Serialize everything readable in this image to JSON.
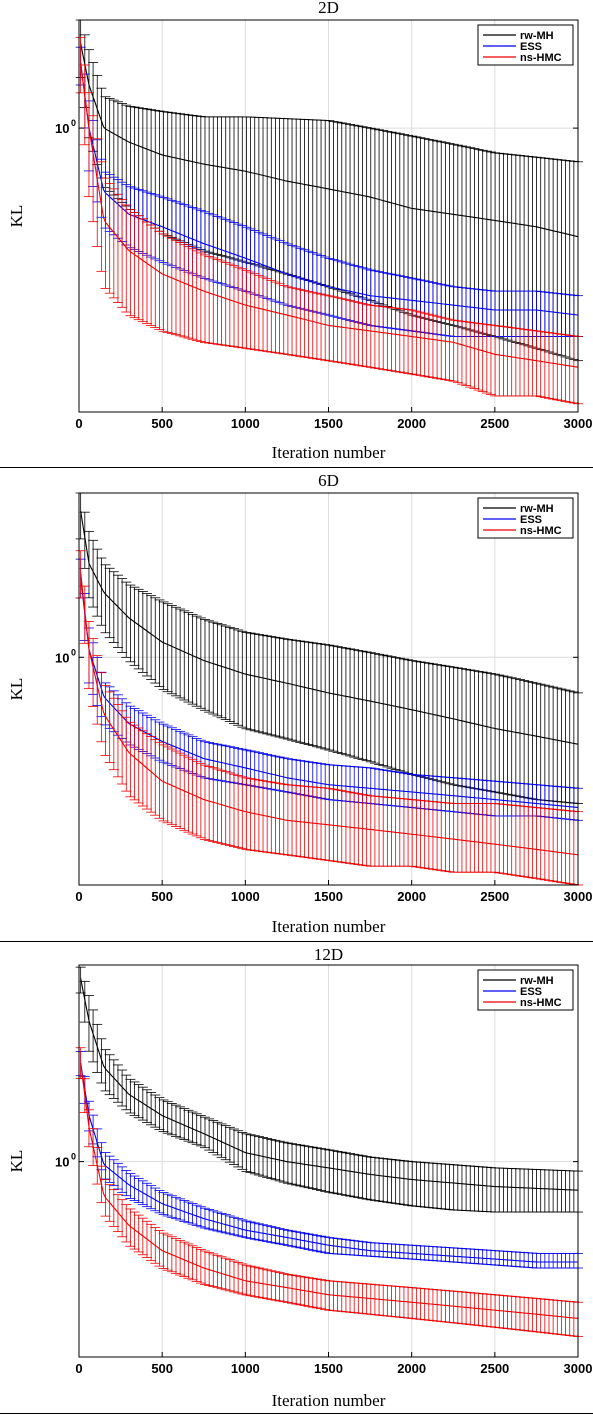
{
  "figure": {
    "panels": [
      "2D",
      "6D",
      "12D"
    ]
  },
  "chart_data": [
    {
      "type": "line",
      "title": "2D",
      "xlabel": "Iteration number",
      "ylabel": "KL",
      "yscale": "log",
      "xlim": [
        0,
        3000
      ],
      "ylim": [
        0.23,
        1.75
      ],
      "xticks": [
        0,
        500,
        1000,
        1500,
        2000,
        2500,
        3000
      ],
      "xtick_labels": [
        "0",
        "500",
        "1000",
        "1500",
        "2000",
        "2500",
        "3000"
      ],
      "yticks": [
        1.0
      ],
      "ytick_label": "10",
      "ytick_exp": "0",
      "grid": true,
      "legend": "top-right",
      "error_bars": true,
      "x": [
        10,
        60,
        150,
        300,
        500,
        750,
        1000,
        1250,
        1500,
        1750,
        2000,
        2250,
        2500,
        2750,
        3000
      ],
      "series": [
        {
          "name": "rw-MH",
          "color": "#000000",
          "values": [
            1.55,
            1.25,
            1.0,
            0.93,
            0.87,
            0.83,
            0.8,
            0.76,
            0.73,
            0.7,
            0.66,
            0.64,
            0.62,
            0.6,
            0.57
          ],
          "lower": [
            1.3,
            0.95,
            0.74,
            0.66,
            0.58,
            0.53,
            0.5,
            0.47,
            0.44,
            0.41,
            0.38,
            0.36,
            0.34,
            0.32,
            0.3
          ],
          "upper": [
            1.75,
            1.5,
            1.18,
            1.12,
            1.09,
            1.06,
            1.06,
            1.05,
            1.04,
            1.0,
            0.96,
            0.92,
            0.88,
            0.86,
            0.84
          ]
        },
        {
          "name": "ESS",
          "color": "#0000ee",
          "values": [
            1.4,
            1.0,
            0.72,
            0.64,
            0.6,
            0.55,
            0.51,
            0.47,
            0.44,
            0.42,
            0.41,
            0.4,
            0.39,
            0.39,
            0.38
          ],
          "lower": [
            1.25,
            0.8,
            0.6,
            0.54,
            0.5,
            0.46,
            0.43,
            0.4,
            0.38,
            0.36,
            0.35,
            0.34,
            0.34,
            0.34,
            0.34
          ],
          "upper": [
            1.52,
            1.15,
            0.8,
            0.74,
            0.7,
            0.65,
            0.6,
            0.55,
            0.51,
            0.48,
            0.46,
            0.44,
            0.43,
            0.43,
            0.42
          ]
        },
        {
          "name": "ns-HMC",
          "color": "#ee0000",
          "values": [
            1.4,
            1.0,
            0.62,
            0.53,
            0.47,
            0.43,
            0.4,
            0.38,
            0.36,
            0.35,
            0.34,
            0.33,
            0.31,
            0.3,
            0.29
          ],
          "lower": [
            1.2,
            0.7,
            0.44,
            0.38,
            0.35,
            0.33,
            0.32,
            0.31,
            0.3,
            0.29,
            0.28,
            0.27,
            0.25,
            0.25,
            0.24
          ],
          "upper": [
            1.6,
            1.2,
            0.78,
            0.66,
            0.58,
            0.52,
            0.48,
            0.44,
            0.42,
            0.4,
            0.39,
            0.37,
            0.36,
            0.35,
            0.34
          ]
        }
      ]
    },
    {
      "type": "line",
      "title": "6D",
      "xlabel": "Iteration number",
      "ylabel": "KL",
      "yscale": "log",
      "xlim": [
        0,
        3000
      ],
      "ylim": [
        0.24,
        2.8
      ],
      "xticks": [
        0,
        500,
        1000,
        1500,
        2000,
        2500,
        3000
      ],
      "xtick_labels": [
        "0",
        "500",
        "1000",
        "1500",
        "2000",
        "2500",
        "3000"
      ],
      "yticks": [
        1.0
      ],
      "ytick_label": "10",
      "ytick_exp": "0",
      "grid": true,
      "legend": "top-right",
      "error_bars": true,
      "x": [
        10,
        60,
        150,
        300,
        500,
        750,
        1000,
        1250,
        1500,
        1750,
        2000,
        2250,
        2500,
        2750,
        3000
      ],
      "series": [
        {
          "name": "rw-MH",
          "color": "#000000",
          "values": [
            2.5,
            1.8,
            1.5,
            1.28,
            1.1,
            0.98,
            0.9,
            0.85,
            0.8,
            0.76,
            0.72,
            0.68,
            0.64,
            0.61,
            0.58
          ],
          "lower": [
            2.1,
            1.45,
            1.18,
            0.98,
            0.82,
            0.72,
            0.64,
            0.6,
            0.56,
            0.52,
            0.48,
            0.45,
            0.43,
            0.41,
            0.4
          ],
          "upper": [
            2.8,
            2.2,
            1.8,
            1.58,
            1.42,
            1.27,
            1.17,
            1.12,
            1.08,
            1.03,
            0.98,
            0.94,
            0.9,
            0.85,
            0.8
          ]
        },
        {
          "name": "ESS",
          "color": "#0000ee",
          "values": [
            1.65,
            1.05,
            0.78,
            0.66,
            0.59,
            0.53,
            0.5,
            0.47,
            0.45,
            0.44,
            0.43,
            0.42,
            0.41,
            0.4,
            0.39
          ],
          "lower": [
            1.45,
            0.85,
            0.66,
            0.58,
            0.52,
            0.47,
            0.45,
            0.43,
            0.41,
            0.4,
            0.39,
            0.38,
            0.37,
            0.37,
            0.36
          ],
          "upper": [
            1.85,
            1.2,
            0.86,
            0.74,
            0.66,
            0.59,
            0.56,
            0.53,
            0.51,
            0.5,
            0.48,
            0.47,
            0.46,
            0.45,
            0.44
          ]
        },
        {
          "name": "ns-HMC",
          "color": "#ee0000",
          "values": [
            1.7,
            1.05,
            0.7,
            0.55,
            0.46,
            0.41,
            0.38,
            0.36,
            0.35,
            0.34,
            0.33,
            0.32,
            0.31,
            0.3,
            0.29
          ],
          "lower": [
            1.45,
            0.82,
            0.55,
            0.42,
            0.36,
            0.32,
            0.3,
            0.29,
            0.28,
            0.27,
            0.27,
            0.26,
            0.26,
            0.25,
            0.24
          ],
          "upper": [
            1.95,
            1.25,
            0.85,
            0.67,
            0.58,
            0.51,
            0.47,
            0.45,
            0.44,
            0.42,
            0.41,
            0.4,
            0.4,
            0.39,
            0.38
          ]
        }
      ]
    },
    {
      "type": "line",
      "title": "12D",
      "xlabel": "Iteration number",
      "ylabel": "KL",
      "yscale": "log",
      "xlim": [
        0,
        3000
      ],
      "ylim": [
        0.28,
        3.6
      ],
      "xticks": [
        0,
        500,
        1000,
        1500,
        2000,
        2500,
        3000
      ],
      "xtick_labels": [
        "0",
        "500",
        "1000",
        "1500",
        "2000",
        "2500",
        "3000"
      ],
      "yticks": [
        1.0
      ],
      "ytick_label": "10",
      "ytick_exp": "0",
      "grid": true,
      "legend": "top-right",
      "error_bars": true,
      "x": [
        10,
        60,
        150,
        300,
        500,
        750,
        1000,
        1250,
        1500,
        1750,
        2000,
        2250,
        2500,
        2750,
        3000
      ],
      "series": [
        {
          "name": "rw-MH",
          "color": "#000000",
          "values": [
            3.3,
            2.5,
            1.85,
            1.55,
            1.35,
            1.2,
            1.06,
            1.0,
            0.96,
            0.92,
            0.89,
            0.87,
            0.85,
            0.84,
            0.83
          ],
          "lower": [
            3.0,
            2.05,
            1.6,
            1.38,
            1.22,
            1.1,
            0.94,
            0.87,
            0.82,
            0.78,
            0.75,
            0.73,
            0.72,
            0.72,
            0.72
          ],
          "upper": [
            3.55,
            2.95,
            2.1,
            1.72,
            1.5,
            1.34,
            1.2,
            1.13,
            1.08,
            1.03,
            1.0,
            0.98,
            0.96,
            0.95,
            0.94
          ]
        },
        {
          "name": "ESS",
          "color": "#0000ee",
          "values": [
            1.9,
            1.35,
            0.98,
            0.86,
            0.76,
            0.69,
            0.64,
            0.61,
            0.58,
            0.56,
            0.55,
            0.54,
            0.53,
            0.52,
            0.52
          ],
          "lower": [
            1.75,
            1.22,
            0.9,
            0.79,
            0.71,
            0.65,
            0.61,
            0.58,
            0.55,
            0.54,
            0.53,
            0.52,
            0.51,
            0.5,
            0.5
          ],
          "upper": [
            2.05,
            1.48,
            1.07,
            0.93,
            0.82,
            0.74,
            0.68,
            0.64,
            0.61,
            0.59,
            0.58,
            0.57,
            0.56,
            0.55,
            0.55
          ]
        },
        {
          "name": "ns-HMC",
          "color": "#ee0000",
          "values": [
            1.9,
            1.25,
            0.8,
            0.66,
            0.56,
            0.5,
            0.46,
            0.44,
            0.42,
            0.41,
            0.4,
            0.39,
            0.38,
            0.37,
            0.36
          ],
          "lower": [
            1.72,
            1.1,
            0.71,
            0.58,
            0.5,
            0.45,
            0.42,
            0.4,
            0.38,
            0.37,
            0.36,
            0.35,
            0.34,
            0.33,
            0.32
          ],
          "upper": [
            2.1,
            1.4,
            0.9,
            0.74,
            0.63,
            0.56,
            0.51,
            0.48,
            0.46,
            0.45,
            0.44,
            0.43,
            0.42,
            0.41,
            0.4
          ]
        }
      ]
    }
  ]
}
